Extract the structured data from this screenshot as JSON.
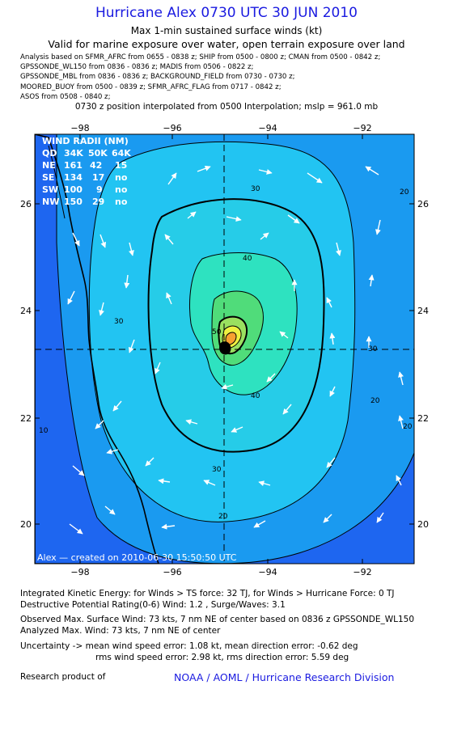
{
  "title": "Hurricane Alex 0730 UTC 30 JUN 2010",
  "subtitle": "Max 1-min sustained surface winds (kt)",
  "valid_line": "Valid for marine exposure over water, open terrain exposure over land",
  "analysis_lines": [
    "Analysis based on  SFMR_AFRC from 0655 - 0838 z;  SHIP from 0500 - 0800 z;  CMAN from 0500 - 0842 z;",
    "GPSSONDE_WL150 from 0836 - 0836 z;  MADIS from 0506 - 0822 z;",
    "GPSSONDE_MBL from 0836 - 0836 z;  BACKGROUND_FIELD from 0730 - 0730 z;",
    "MOORED_BUOY from 0500 - 0839 z;  SFMR_AFRC_FLAG from 0717 - 0842 z;",
    "ASOS from 0508 - 0840 z;"
  ],
  "position_line": "0730 z position interpolated from 0500 Interpolation; mslp = 961.0 mb",
  "map": {
    "lon_labels": [
      "−98",
      "−96",
      "−94",
      "−92"
    ],
    "lat_labels": [
      "26",
      "24",
      "22",
      "20"
    ],
    "contour_labels": [
      "30",
      "20",
      "40",
      "50",
      "30",
      "30",
      "40",
      "20",
      "20",
      "30",
      "20",
      "10"
    ],
    "wind_radii": {
      "header": "WIND RADII (NM)",
      "columns": [
        "QD",
        "34K",
        "50K",
        "64K"
      ],
      "rows": [
        [
          "NE",
          "161",
          "42",
          "15"
        ],
        [
          "SE",
          "134",
          "17",
          "no"
        ],
        [
          "SW",
          "100",
          "9",
          "no"
        ],
        [
          "NW",
          "150",
          "29",
          "no"
        ]
      ]
    },
    "created_label": "Alex — created on 2010-06-30 15:50:50 UTC",
    "colors": {
      "deep_blue": "#1240ee",
      "blue_10": "#1e66f0",
      "blue_20": "#1a9af0",
      "cyan_30": "#22c4f2",
      "teal_40": "#2ee2c0",
      "green_50": "#50dc7a",
      "yellow_60": "#f0f040",
      "orange_70": "#f8a030"
    }
  },
  "footer": {
    "line1": "Integrated Kinetic Energy:  for Winds > TS force: 32 TJ,  for Winds > Hurricane Force: 0 TJ",
    "line2": "Destructive Potential Rating(0-6)   Wind: 1.2 , Surge/Waves: 3.1",
    "line3": "Observed Max. Surface Wind: 73 kts, 7 nm NE of center based on 0836 z GPSSONDE_WL150",
    "line4": "Analyzed Max. Wind: 73 kts, 7 nm NE of center",
    "line5": "Uncertainty -> mean wind speed error: 1.08 kt,   mean direction error:  -0.62 deg",
    "line6": "rms wind speed error: 2.98 kt,   rms direction error: 5.59 deg",
    "research": "Research product of",
    "credit": "NOAA / AOML / Hurricane Research Division"
  }
}
